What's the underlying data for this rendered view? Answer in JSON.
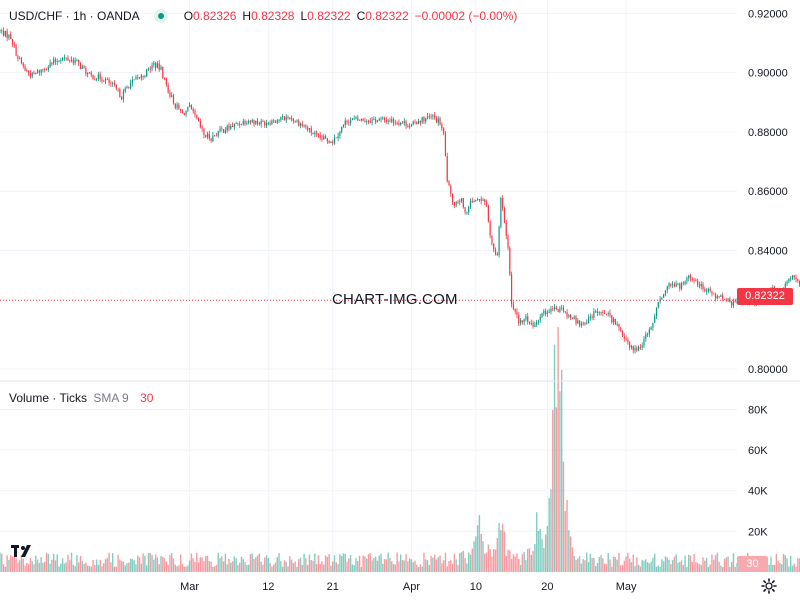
{
  "header": {
    "symbol": "USD/CHF · 1h · OANDA",
    "open_label": "O",
    "open": "0.82326",
    "high_label": "H",
    "high": "0.82328",
    "low_label": "L",
    "low": "0.82322",
    "close_label": "C",
    "close": "0.82322",
    "change": "−0.00002 (−0.00%)"
  },
  "volume_header": {
    "title": "Volume · Ticks",
    "sma_label": "SMA 9",
    "sma_value": "30"
  },
  "watermark": "CHART-IMG.COM",
  "price_tag": "0.82322",
  "volume_tag": "30",
  "colors": {
    "up": "#089981",
    "down": "#f23645",
    "grid": "#f0f3fa",
    "text": "#131722"
  },
  "icons": {
    "logo": "tradingview-logo-icon",
    "settings": "gear-icon"
  },
  "chart_data": {
    "type": "candlestick",
    "price_axis": {
      "ticks": [
        "0.92000",
        "0.90000",
        "0.88000",
        "0.86000",
        "0.84000",
        "0.80000"
      ],
      "tick_values": [
        0.92,
        0.9,
        0.88,
        0.86,
        0.84,
        0.8
      ],
      "range": [
        0.796,
        0.9245
      ]
    },
    "volume_axis": {
      "ticks": [
        "80K",
        "60K",
        "40K",
        "20K"
      ],
      "tick_values": [
        80000,
        60000,
        40000,
        20000
      ],
      "range": [
        0,
        94000
      ]
    },
    "time_axis": {
      "labels": [
        "Mar",
        "12",
        "21",
        "Apr",
        "10",
        "20",
        "May"
      ],
      "label_days": [
        0,
        11,
        20,
        31,
        40,
        50,
        61
      ],
      "range_days": [
        -26.5,
        76.5
      ]
    },
    "current_price": 0.82322,
    "close_path": [
      [
        -26.5,
        0.914
      ],
      [
        -25.0,
        0.912
      ],
      [
        -24.0,
        0.905
      ],
      [
        -23.0,
        0.901
      ],
      [
        -22.0,
        0.899
      ],
      [
        -20.0,
        0.902
      ],
      [
        -18.0,
        0.905
      ],
      [
        -16.0,
        0.904
      ],
      [
        -14.0,
        0.899
      ],
      [
        -12.0,
        0.898
      ],
      [
        -10.5,
        0.895
      ],
      [
        -9.5,
        0.892
      ],
      [
        -8.5,
        0.896
      ],
      [
        -6.5,
        0.899
      ],
      [
        -5.0,
        0.903
      ],
      [
        -4.0,
        0.901
      ],
      [
        -3.0,
        0.894
      ],
      [
        -2.0,
        0.889
      ],
      [
        -1.0,
        0.886
      ],
      [
        0.0,
        0.888
      ],
      [
        1.0,
        0.884
      ],
      [
        2.0,
        0.879
      ],
      [
        3.0,
        0.878
      ],
      [
        4.0,
        0.88
      ],
      [
        6.0,
        0.882
      ],
      [
        8.0,
        0.884
      ],
      [
        10.0,
        0.883
      ],
      [
        12.0,
        0.884
      ],
      [
        14.0,
        0.885
      ],
      [
        16.0,
        0.882
      ],
      [
        18.0,
        0.878
      ],
      [
        20.0,
        0.877
      ],
      [
        22.0,
        0.884
      ],
      [
        24.0,
        0.884
      ],
      [
        26.0,
        0.884
      ],
      [
        28.0,
        0.884
      ],
      [
        30.0,
        0.883
      ],
      [
        31.0,
        0.882
      ],
      [
        32.0,
        0.884
      ],
      [
        34.0,
        0.885
      ],
      [
        35.0,
        0.883
      ],
      [
        35.5,
        0.879
      ],
      [
        36.0,
        0.864
      ],
      [
        36.5,
        0.858
      ],
      [
        37.0,
        0.856
      ],
      [
        38.0,
        0.858
      ],
      [
        38.5,
        0.852
      ],
      [
        39.5,
        0.857
      ],
      [
        40.5,
        0.858
      ],
      [
        41.5,
        0.855
      ],
      [
        42.0,
        0.845
      ],
      [
        43.0,
        0.838
      ],
      [
        43.5,
        0.857
      ],
      [
        44.5,
        0.842
      ],
      [
        45.0,
        0.822
      ],
      [
        46.0,
        0.816
      ],
      [
        47.0,
        0.817
      ],
      [
        48.0,
        0.815
      ],
      [
        49.0,
        0.818
      ],
      [
        50.5,
        0.82
      ],
      [
        52.0,
        0.82
      ],
      [
        53.5,
        0.817
      ],
      [
        55.0,
        0.815
      ],
      [
        56.5,
        0.819
      ],
      [
        57.5,
        0.82
      ],
      [
        59.0,
        0.817
      ],
      [
        60.0,
        0.814
      ],
      [
        61.0,
        0.81
      ],
      [
        62.0,
        0.806
      ],
      [
        63.0,
        0.808
      ],
      [
        64.0,
        0.812
      ],
      [
        65.0,
        0.818
      ],
      [
        66.0,
        0.825
      ],
      [
        67.0,
        0.829
      ],
      [
        68.5,
        0.828
      ],
      [
        70.0,
        0.831
      ],
      [
        71.5,
        0.828
      ],
      [
        73.0,
        0.825
      ],
      [
        74.5,
        0.824
      ],
      [
        76.0,
        0.822
      ],
      [
        77.5,
        0.823
      ],
      [
        79.0,
        0.822
      ],
      [
        80.0,
        0.824
      ],
      [
        81.5,
        0.827
      ],
      [
        82.5,
        0.825
      ],
      [
        84.0,
        0.831
      ],
      [
        85.5,
        0.829
      ],
      [
        87.0,
        0.826
      ],
      [
        88.5,
        0.824
      ],
      [
        89.5,
        0.823
      ],
      [
        90.5,
        0.823
      ],
      [
        91.5,
        0.822
      ]
    ],
    "volume_spikes": [
      [
        40.5,
        36000
      ],
      [
        43.5,
        30000
      ],
      [
        48.5,
        23000
      ],
      [
        51.0,
        88000
      ],
      [
        51.5,
        74000
      ],
      [
        52.0,
        72000
      ]
    ],
    "volume_base": 6000
  }
}
